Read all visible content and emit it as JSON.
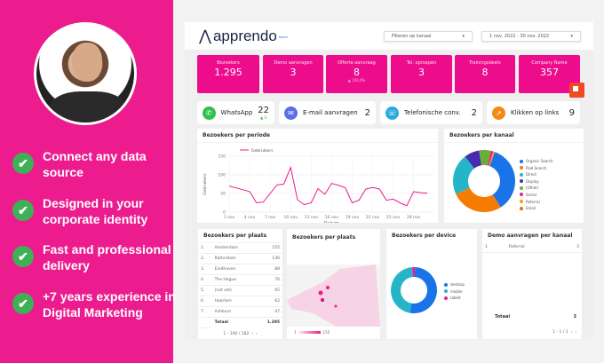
{
  "promo": {
    "features": [
      "Connect any data source",
      "Designed in your corporate identity",
      "Fast and professional delivery",
      "+7 years experience in Digital Marketing"
    ]
  },
  "header": {
    "logo": "apprendo",
    "logo_sub": "lorem",
    "filter": "Filteren op kanaal",
    "date_range": "1 nov. 2022 - 30 nov. 2022"
  },
  "kpis": [
    {
      "label": "Bezoekers",
      "value": "1.295"
    },
    {
      "label": "Demo aanvragen",
      "value": "3"
    },
    {
      "label": "Offerte aanvraag",
      "value": "8",
      "delta": "▲ 100,0%"
    },
    {
      "label": "Tel. oproepen",
      "value": "3"
    },
    {
      "label": "Trainingsdeels",
      "value": "8"
    },
    {
      "label": "Company Name",
      "value": "357"
    }
  ],
  "channels": [
    {
      "label": "WhatsApp",
      "value": "22",
      "delta": "▲ 4",
      "color": "#2fc14b",
      "icon": "whatsapp-icon"
    },
    {
      "label": "E-mail aanvragen",
      "value": "2",
      "color": "#5b6fe6",
      "icon": "mail-icon"
    },
    {
      "label": "Telefonische conv.",
      "value": "2",
      "color": "#2aa8e0",
      "icon": "phone-icon"
    },
    {
      "label": "Klikken op links",
      "value": "9",
      "color": "#f28a1a",
      "icon": "rocket-icon"
    }
  ],
  "line_card": {
    "title": "Bezoekers per periode"
  },
  "chart_data": [
    {
      "type": "line",
      "xlabel": "Datum",
      "ylabel": "Gebruikers",
      "ylim": [
        0,
        150
      ],
      "yticks": [
        0,
        50,
        100,
        150
      ],
      "xticks": [
        "1 nov",
        "4 nov",
        "7 nov",
        "10 nov",
        "13 nov",
        "16 nov",
        "19 nov",
        "22 nov",
        "25 nov",
        "28 nov"
      ],
      "grid": true,
      "legend": "top-left",
      "series": [
        {
          "name": "Gebruikers",
          "color": "#ec1c8e",
          "x": [
            1,
            2,
            3,
            4,
            5,
            6,
            7,
            8,
            9,
            10,
            11,
            12,
            13,
            14,
            15,
            16,
            17,
            18,
            19,
            20,
            21,
            22,
            23,
            24,
            25,
            26,
            27,
            28,
            29,
            30
          ],
          "values": [
            70,
            65,
            60,
            55,
            25,
            27,
            50,
            73,
            75,
            120,
            33,
            20,
            25,
            63,
            48,
            77,
            72,
            65,
            25,
            32,
            62,
            66,
            62,
            32,
            35,
            25,
            17,
            55,
            52,
            51
          ]
        }
      ]
    },
    {
      "type": "pie",
      "title": "Bezoekers per kanaal",
      "legend": "right",
      "categories": [
        "Organic Search",
        "Paid Search",
        "Direct",
        "Display",
        "(Other)",
        "Social",
        "Referral",
        "Email"
      ],
      "values": [
        459,
        350,
        278,
        102,
        80,
        16,
        10,
        0
      ],
      "colors": [
        "#1a73e8",
        "#f57c00",
        "#26b5c8",
        "#4a2ab0",
        "#6aae3a",
        "#ec1c8e",
        "#ffa000",
        "#ef6c00"
      ]
    },
    {
      "type": "pie",
      "title": "Bezoekers per device",
      "legend": "right",
      "categories": [
        "desktop",
        "mobile",
        "tablet"
      ],
      "values": [
        52,
        46,
        2
      ],
      "colors": [
        "#1a73e8",
        "#26b5c8",
        "#ec1c8e"
      ]
    }
  ],
  "places": {
    "title": "Bezoekers per plaats",
    "rows": [
      [
        "1.",
        "Amsterdam",
        "155"
      ],
      [
        "2.",
        "Rotterdam",
        "136"
      ],
      [
        "3.",
        "Eindhoven",
        "88"
      ],
      [
        "4.",
        "The Hague",
        "76"
      ],
      [
        "5.",
        "(not set)",
        "65"
      ],
      [
        "6.",
        "Haarlem",
        "62"
      ],
      [
        "7.",
        "Ashburn",
        "47"
      ]
    ],
    "total_label": "Totaal",
    "total": "1.295",
    "pagination": "1 - 100 / 182"
  },
  "map": {
    "title": "Bezoekers per plaats",
    "scale_min": "1",
    "scale_max": "155"
  },
  "demo": {
    "title": "Demo aanvragen per kanaal",
    "rows": [
      [
        "1.",
        "Referral",
        "3"
      ]
    ],
    "total_label": "Totaal",
    "total": "3",
    "pagination": "1 - 1 / 1"
  }
}
